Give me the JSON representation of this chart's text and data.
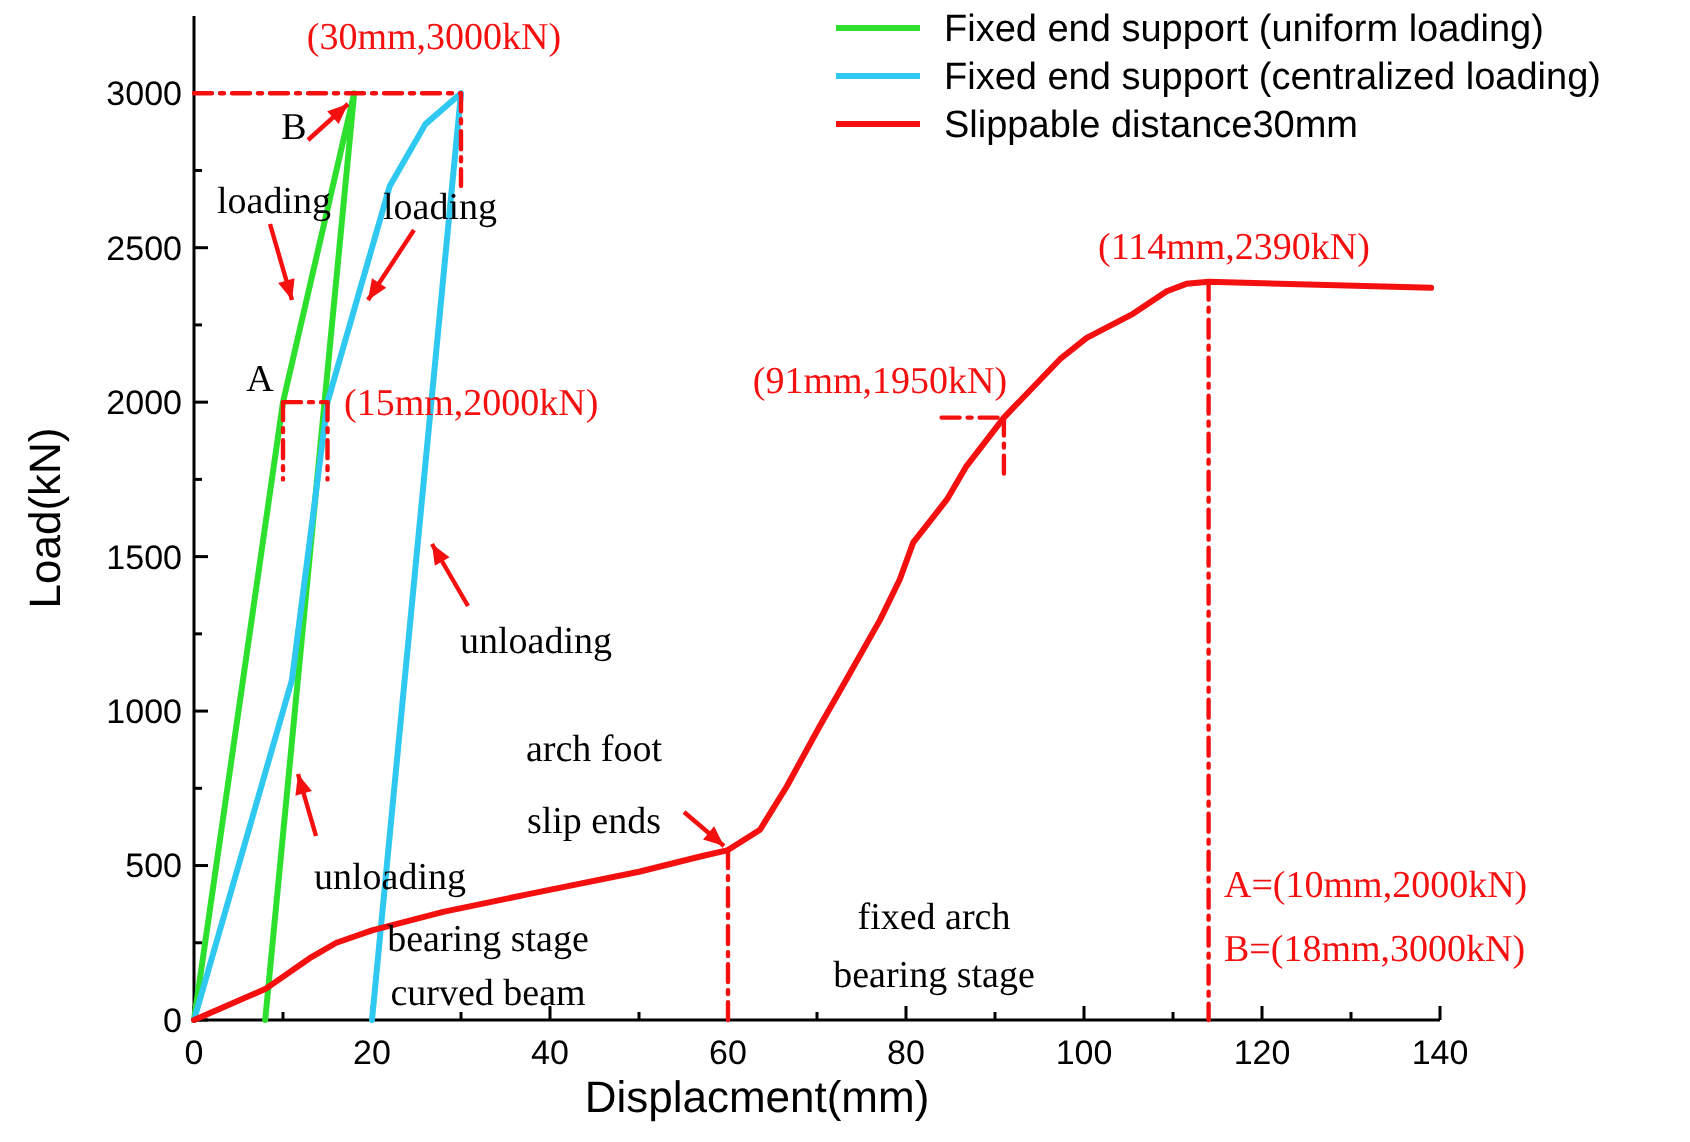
{
  "chart_data": {
    "type": "line",
    "xlabel": "Displacment(mm)",
    "ylabel": "Load(kN)",
    "xlim": [
      0,
      140
    ],
    "ylim": [
      0,
      3250
    ],
    "xticks": [
      0,
      {
        "value": 10,
        "label": null
      },
      20,
      {
        "value": 30,
        "label": null
      },
      40,
      {
        "value": 50,
        "label": null
      },
      60,
      {
        "value": 70,
        "label": null
      },
      80,
      {
        "value": 90,
        "label": null
      },
      100,
      {
        "value": 110,
        "label": null
      },
      120,
      {
        "value": 130,
        "label": null
      },
      140
    ],
    "yticks": [
      0,
      {
        "value": 250,
        "label": null
      },
      500,
      {
        "value": 750,
        "label": null
      },
      1000,
      {
        "value": 1250,
        "label": null
      },
      1500,
      {
        "value": 1750,
        "label": null
      },
      2000,
      {
        "value": 2250,
        "label": null
      },
      2500,
      {
        "value": 2750,
        "label": null
      },
      3000
    ],
    "grid": false,
    "legend": "top right",
    "marker": "none",
    "line_style": "solid",
    "series": [
      {
        "name": "Fixed end support (uniform loading)",
        "color": "#2ee02e",
        "x": [
          0,
          10,
          18,
          8
        ],
        "values": [
          0,
          2000,
          3000,
          0
        ]
      },
      {
        "name": "Fixed end support (centralized loading)",
        "color": "#2ec8f0",
        "x": [
          0,
          11,
          15,
          22,
          26,
          30,
          20
        ],
        "values": [
          0,
          1100,
          2000,
          2700,
          2900,
          3000,
          0
        ]
      },
      {
        "name": "Slippable distance30mm",
        "color": "#f51010",
        "x": [
          0,
          8,
          13,
          16,
          20,
          28,
          38,
          50,
          57,
          60,
          63.6,
          66.6,
          70.3,
          73.3,
          77.1,
          79.3,
          80.8,
          84.6,
          86.8,
          91,
          97.3,
          100.3,
          105.5,
          109.3,
          111.5,
          114,
          139
        ],
        "values": [
          0,
          100,
          200,
          250,
          290,
          350,
          410,
          480,
          530,
          550,
          616,
          756,
          951,
          1102,
          1296,
          1426,
          1545,
          1685,
          1793,
          1950,
          2139,
          2208,
          2286,
          2359,
          2383,
          2390,
          2370
        ]
      },
      {
        "color": "#f51010",
        "line_style": "dashed",
        "x": [
          0,
          30
        ],
        "values": [
          3000,
          3000
        ]
      },
      {
        "color": "#f51010",
        "line_style": "dashed",
        "x": [
          30,
          30
        ],
        "values": [
          3000,
          2700
        ]
      },
      {
        "color": "#f51010",
        "line_style": "dashed",
        "x": [
          10,
          15
        ],
        "values": [
          2000,
          2000
        ]
      },
      {
        "color": "#f51010",
        "line_style": "dashed",
        "x": [
          10,
          10
        ],
        "values": [
          2000,
          1750
        ]
      },
      {
        "color": "#f51010",
        "line_style": "dashed",
        "x": [
          15,
          15
        ],
        "values": [
          2000,
          1750
        ]
      },
      {
        "color": "#f51010",
        "line_style": "dashed",
        "x": [
          84,
          91
        ],
        "values": [
          1950,
          1950
        ]
      },
      {
        "color": "#f51010",
        "line_style": "dashed",
        "x": [
          91,
          91
        ],
        "values": [
          1950,
          1750
        ]
      },
      {
        "color": "#f51010",
        "line_style": "dashed",
        "x": [
          60,
          60
        ],
        "values": [
          550,
          0
        ]
      },
      {
        "color": "#f51010",
        "line_style": "dashed",
        "x": [
          114,
          114
        ],
        "values": [
          2390,
          0
        ]
      }
    ],
    "annotations": [
      "(30mm,3000kN)",
      "B",
      "loading",
      "loading",
      "A",
      "(15mm,2000kN)",
      "unloading",
      "unloading",
      "arch foot",
      "slip ends",
      "bearing stage",
      "curved beam",
      "fixed arch",
      "bearing stage",
      "(91mm,1950kN)",
      "(114mm,2390kN)",
      "A=(10mm,2000kN)",
      "B=(18mm,3000kN)"
    ]
  }
}
